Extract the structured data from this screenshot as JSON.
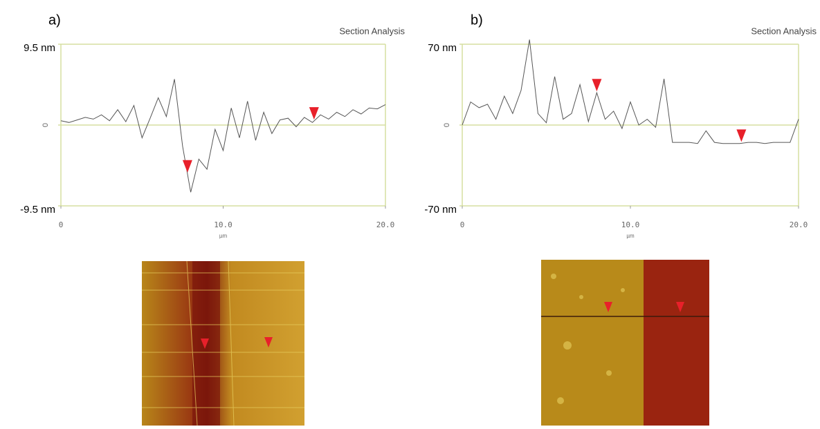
{
  "chart_data": [
    {
      "type": "line",
      "panel_label": "a)",
      "title": "Section Analysis",
      "x_label": "µm",
      "color": "#555555",
      "cursor_x": [
        7.8,
        15.6
      ],
      "cursor_color": "#e8202a",
      "xlim": [
        0,
        20
      ],
      "xticks": [
        0,
        {
          "value": 10,
          "label": "10.0"
        },
        {
          "value": 20,
          "label": "20.0"
        }
      ],
      "ylim": [
        -9.5,
        9.5
      ],
      "yticks": [
        {
          "value": 9.5,
          "label": "9.5 nm"
        },
        0,
        {
          "value": -9.5,
          "label": "-9.5 nm"
        }
      ],
      "x": [
        0,
        0.5,
        1,
        1.5,
        2,
        2.5,
        3,
        3.5,
        4,
        4.5,
        5,
        5.5,
        6,
        6.5,
        7,
        7.5,
        8,
        8.5,
        9,
        9.5,
        10,
        10.5,
        11,
        11.5,
        12,
        12.5,
        13,
        13.5,
        14,
        14.5,
        15,
        15.5,
        16,
        16.5,
        17,
        17.5,
        18,
        18.5,
        19,
        19.5,
        20
      ],
      "values": [
        0.5,
        0.3,
        0.6,
        0.9,
        0.7,
        1.2,
        0.5,
        1.8,
        0.4,
        2.3,
        -1.5,
        0.8,
        3.2,
        1.0,
        5.4,
        -2.5,
        -7.9,
        -4.0,
        -5.2,
        -0.5,
        -3.0,
        2.0,
        -1.5,
        2.8,
        -1.8,
        1.5,
        -1.0,
        0.6,
        0.8,
        -0.2,
        0.9,
        0.3,
        1.2,
        0.7,
        1.5,
        1.0,
        1.8,
        1.3,
        2.0,
        1.9,
        2.4
      ]
    },
    {
      "type": "line",
      "panel_label": "b)",
      "title": "Section Analysis",
      "x_label": "µm",
      "color": "#555555",
      "cursor_x": [
        8.0,
        16.6
      ],
      "cursor_color": "#e8202a",
      "xlim": [
        0,
        20
      ],
      "xticks": [
        0,
        {
          "value": 10,
          "label": "10.0"
        },
        {
          "value": 20,
          "label": "20.0"
        }
      ],
      "ylim": [
        -70,
        70
      ],
      "yticks": [
        {
          "value": 70,
          "label": "70 nm"
        },
        0,
        {
          "value": -70,
          "label": "-70 nm"
        }
      ],
      "x": [
        0,
        0.5,
        1,
        1.5,
        2,
        2.5,
        3,
        3.5,
        4,
        4.5,
        5,
        5.5,
        6,
        6.5,
        7,
        7.5,
        8,
        8.5,
        9,
        9.5,
        10,
        10.5,
        11,
        11.5,
        12,
        12.5,
        13,
        13.5,
        14,
        14.5,
        15,
        15.5,
        16,
        16.5,
        17,
        17.5,
        18,
        18.5,
        19,
        19.5,
        20
      ],
      "values": [
        0,
        20,
        15,
        18,
        5,
        25,
        10,
        30,
        74,
        10,
        2,
        42,
        5,
        10,
        35,
        3,
        28,
        5,
        12,
        -3,
        20,
        0,
        5,
        -2,
        40,
        -15,
        -15,
        -15,
        -16,
        -5,
        -15,
        -16,
        -16,
        -16,
        -15,
        -15,
        -16,
        -15,
        -15,
        -15,
        5
      ]
    }
  ]
}
